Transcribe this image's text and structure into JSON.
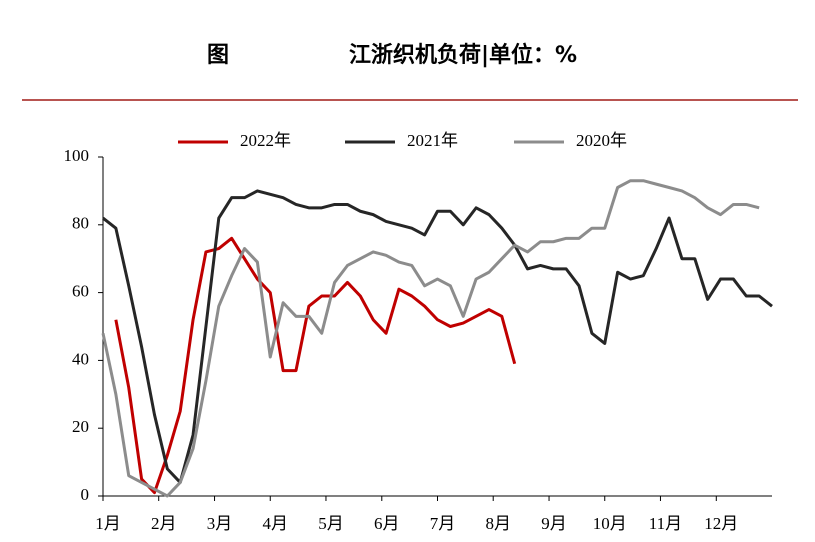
{
  "chart_data": {
    "type": "line",
    "title_prefix": "图",
    "title": "江浙织机负荷|单位：%",
    "x": [
      1,
      2,
      3,
      4,
      5,
      6,
      7,
      8,
      9,
      10,
      11,
      12,
      13,
      14,
      15,
      16,
      17,
      18,
      19,
      20,
      21,
      22,
      23,
      24,
      25,
      26,
      27,
      28,
      29,
      30,
      31,
      32,
      33,
      34,
      35,
      36,
      37,
      38,
      39,
      40,
      41,
      42,
      43,
      44,
      45,
      46,
      47,
      48,
      49,
      50,
      51,
      52,
      53
    ],
    "xlim": [
      1,
      53
    ],
    "xticks": [
      {
        "value": 1,
        "label": "1月"
      },
      {
        "value": 5.33,
        "label": "2月"
      },
      {
        "value": 9.67,
        "label": "3月"
      },
      {
        "value": 14,
        "label": "4月"
      },
      {
        "value": 18.33,
        "label": "5月"
      },
      {
        "value": 22.67,
        "label": "6月"
      },
      {
        "value": 27,
        "label": "7月"
      },
      {
        "value": 31.33,
        "label": "8月"
      },
      {
        "value": 35.67,
        "label": "9月"
      },
      {
        "value": 40,
        "label": "10月"
      },
      {
        "value": 44.33,
        "label": "11月"
      },
      {
        "value": 48.67,
        "label": "12月"
      }
    ],
    "ylim": [
      0,
      100
    ],
    "yticks": [
      0,
      20,
      40,
      60,
      80,
      100
    ],
    "grid": false,
    "legend": "top",
    "series": [
      {
        "name": "2022年",
        "color": "#c00000",
        "values": [
          null,
          52,
          32,
          5,
          1,
          12,
          25,
          52,
          72,
          73,
          76,
          70,
          64,
          60,
          37,
          37,
          56,
          59,
          59,
          63,
          59,
          52,
          48,
          61,
          59,
          56,
          52,
          50,
          51,
          53,
          55,
          53,
          39,
          null,
          null,
          null,
          null,
          null,
          null,
          null,
          null,
          null,
          null,
          null,
          null,
          null,
          null,
          null,
          null,
          null,
          null,
          null,
          null
        ]
      },
      {
        "name": "2021年",
        "color": "#262626",
        "values": [
          82,
          79,
          62,
          44,
          24,
          8,
          4,
          18,
          50,
          82,
          88,
          88,
          90,
          89,
          88,
          86,
          85,
          85,
          86,
          86,
          84,
          83,
          81,
          80,
          79,
          77,
          84,
          84,
          80,
          85,
          83,
          79,
          74,
          67,
          68,
          67,
          67,
          62,
          48,
          45,
          66,
          64,
          65,
          73,
          82,
          70,
          70,
          58,
          64,
          64,
          59,
          59,
          56
        ]
      },
      {
        "name": "2020年",
        "color": "#8c8c8c",
        "values": [
          48,
          30,
          6,
          4,
          2,
          0,
          4,
          14,
          34,
          56,
          65,
          73,
          69,
          41,
          57,
          53,
          53,
          48,
          63,
          68,
          70,
          72,
          71,
          69,
          68,
          62,
          64,
          62,
          53,
          64,
          66,
          70,
          74,
          72,
          75,
          75,
          76,
          76,
          79,
          79,
          91,
          93,
          93,
          92,
          91,
          90,
          88,
          85,
          83,
          86,
          86,
          85,
          null
        ]
      }
    ]
  }
}
